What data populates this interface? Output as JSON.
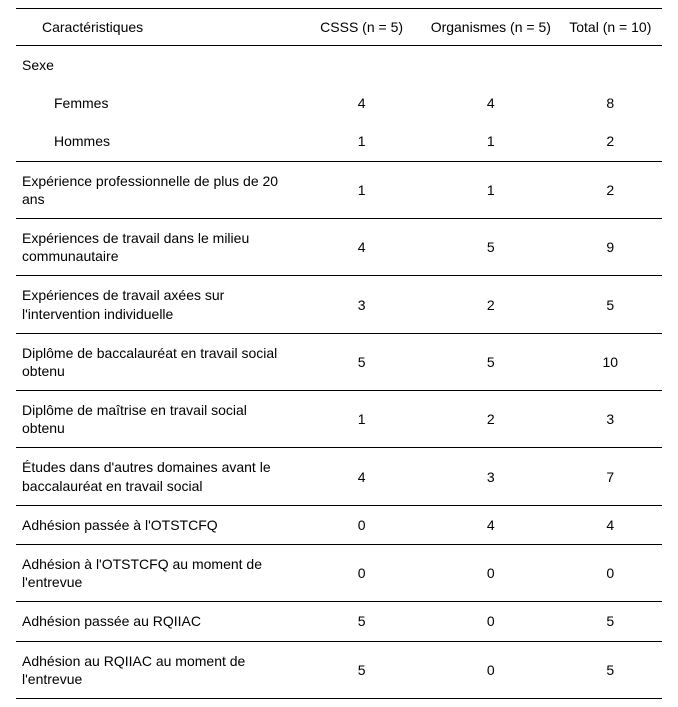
{
  "table": {
    "columns": [
      {
        "label": "Caractéristiques"
      },
      {
        "label": "CSSS (n = 5)"
      },
      {
        "label": "Organismes (n = 5)"
      },
      {
        "label": "Total (n = 10)"
      }
    ],
    "rows": [
      {
        "label": "Sexe",
        "csss": "",
        "org": "",
        "total": "",
        "border": true,
        "indent": false
      },
      {
        "label": "Femmes",
        "csss": "4",
        "org": "4",
        "total": "8",
        "border": false,
        "indent": true
      },
      {
        "label": "Hommes",
        "csss": "1",
        "org": "1",
        "total": "2",
        "border": false,
        "indent": true
      },
      {
        "label": "Expérience professionnelle de plus de 20 ans",
        "csss": "1",
        "org": "1",
        "total": "2",
        "border": true,
        "indent": false
      },
      {
        "label": "Expériences de travail dans le milieu communautaire",
        "csss": "4",
        "org": "5",
        "total": "9",
        "border": true,
        "indent": false
      },
      {
        "label": "Expériences de travail axées sur l'intervention individuelle",
        "csss": "3",
        "org": "2",
        "total": "5",
        "border": true,
        "indent": false
      },
      {
        "label": "Diplôme de baccalauréat en travail social obtenu",
        "csss": "5",
        "org": "5",
        "total": "10",
        "border": true,
        "indent": false
      },
      {
        "label": "Diplôme de maîtrise en travail social obtenu",
        "csss": "1",
        "org": "2",
        "total": "3",
        "border": true,
        "indent": false
      },
      {
        "label": "Études dans d'autres domaines avant le baccalauréat en travail social",
        "csss": "4",
        "org": "3",
        "total": "7",
        "border": true,
        "indent": false
      },
      {
        "label": "Adhésion passée à l'OTSTCFQ",
        "csss": "0",
        "org": "4",
        "total": "4",
        "border": true,
        "indent": false
      },
      {
        "label": "Adhésion à l'OTSTCFQ au moment de l'entrevue",
        "csss": "0",
        "org": "0",
        "total": "0",
        "border": true,
        "indent": false
      },
      {
        "label": "Adhésion passée au RQIIAC",
        "csss": "5",
        "org": "0",
        "total": "5",
        "border": true,
        "indent": false
      },
      {
        "label": "Adhésion au RQIIAC au moment de l'entrevue",
        "csss": "5",
        "org": "0",
        "total": "5",
        "border": true,
        "indent": false
      }
    ],
    "style": {
      "font_family": "Arial",
      "font_size_pt": 11,
      "text_color": "#000000",
      "background_color": "#ffffff",
      "border_color": "#000000"
    }
  }
}
